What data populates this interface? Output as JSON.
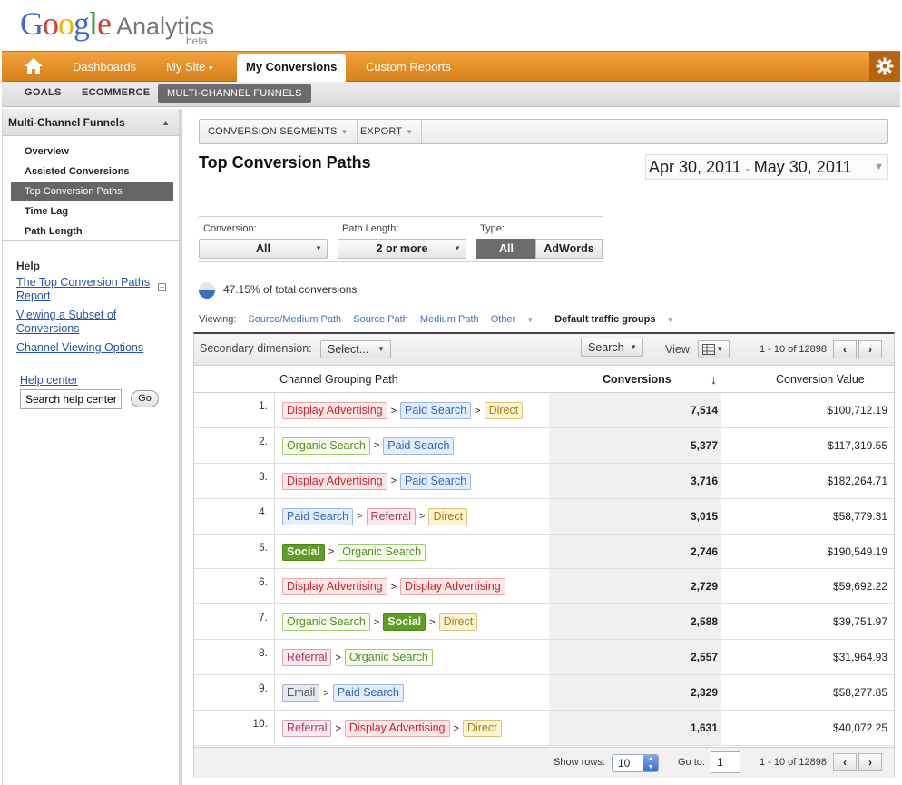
{
  "brand": {
    "google": [
      "G",
      "o",
      "o",
      "g",
      "l",
      "e"
    ],
    "product": "Analytics",
    "beta": "beta"
  },
  "topnav": {
    "items": [
      "Dashboards",
      "My Site",
      "My Conversions",
      "Custom Reports"
    ],
    "my_site_arrow": "▾",
    "active": "My Conversions",
    "accent": "#e48f25"
  },
  "subnav": {
    "items": [
      "GOALS",
      "ECOMMERCE",
      "MULTI-CHANNEL FUNNELS"
    ],
    "active": "MULTI-CHANNEL FUNNELS"
  },
  "sidebar": {
    "title": "Multi-Channel Funnels",
    "items": [
      "Overview",
      "Assisted Conversions",
      "Top Conversion Paths",
      "Time Lag",
      "Path Length"
    ],
    "active": "Top Conversion Paths",
    "help": {
      "title": "Help",
      "links": [
        "The Top Conversion Paths Report",
        "Viewing a Subset of Conversions",
        "Channel Viewing Options"
      ],
      "help_center": "Help center",
      "search_value": "Search help center",
      "go_label": "Go"
    }
  },
  "toolbar": {
    "segments_label": "CONVERSION SEGMENTS",
    "export_label": "EXPORT"
  },
  "page_title": "Top Conversion Paths",
  "date_range": {
    "start": "Apr 30, 2011",
    "dash": "-",
    "end": "May 30, 2011"
  },
  "filters": {
    "conversion_label": "Conversion:",
    "conversion_value": "All",
    "path_length_label": "Path Length:",
    "path_length_value": "2 or more",
    "type_label": "Type:",
    "type_options": [
      "All",
      "AdWords"
    ],
    "type_selected": "All"
  },
  "summary": {
    "percent_text": "47.15% of total conversions",
    "percent": 47.15
  },
  "viewing": {
    "label": "Viewing:",
    "options": [
      "Source/Medium Path",
      "Source Path",
      "Medium Path",
      "Other"
    ],
    "current": "Default traffic groups"
  },
  "secondary": {
    "label": "Secondary dimension:",
    "select_value": "Select...",
    "search_label": "Search",
    "view_label": "View:",
    "pagination_text": "1 - 10 of 12898"
  },
  "table": {
    "columns": [
      "Channel Grouping Path",
      "Conversions",
      "Conversion Value"
    ],
    "sort_icon": "↓",
    "rows": [
      {
        "n": "1.",
        "path": [
          [
            "Display Advertising",
            "display"
          ],
          [
            "Paid Search",
            "paid"
          ],
          [
            "Direct",
            "direct"
          ]
        ],
        "conversions": "7,514",
        "value": "$100,712.19"
      },
      {
        "n": "2.",
        "path": [
          [
            "Organic Search",
            "organic"
          ],
          [
            "Paid Search",
            "paid"
          ]
        ],
        "conversions": "5,377",
        "value": "$117,319.55"
      },
      {
        "n": "3.",
        "path": [
          [
            "Display Advertising",
            "display"
          ],
          [
            "Paid Search",
            "paid"
          ]
        ],
        "conversions": "3,716",
        "value": "$182,264.71"
      },
      {
        "n": "4.",
        "path": [
          [
            "Paid Search",
            "paid"
          ],
          [
            "Referral",
            "referral"
          ],
          [
            "Direct",
            "direct"
          ]
        ],
        "conversions": "3,015",
        "value": "$58,779.31"
      },
      {
        "n": "5.",
        "path": [
          [
            "Social",
            "social"
          ],
          [
            "Organic Search",
            "organic"
          ]
        ],
        "conversions": "2,746",
        "value": "$190,549.19"
      },
      {
        "n": "6.",
        "path": [
          [
            "Display Advertising",
            "display"
          ],
          [
            "Display Advertising",
            "display"
          ]
        ],
        "conversions": "2,729",
        "value": "$59,692.22"
      },
      {
        "n": "7.",
        "path": [
          [
            "Organic Search",
            "organic"
          ],
          [
            "Social",
            "social"
          ],
          [
            "Direct",
            "direct"
          ]
        ],
        "conversions": "2,588",
        "value": "$39,751.97"
      },
      {
        "n": "8.",
        "path": [
          [
            "Referral",
            "referral"
          ],
          [
            "Organic Search",
            "organic"
          ]
        ],
        "conversions": "2,557",
        "value": "$31,964.93"
      },
      {
        "n": "9.",
        "path": [
          [
            "Email",
            "email"
          ],
          [
            "Paid Search",
            "paid"
          ]
        ],
        "conversions": "2,329",
        "value": "$58,277.85"
      },
      {
        "n": "10.",
        "path": [
          [
            "Referral",
            "referral"
          ],
          [
            "Display Advertising",
            "display"
          ],
          [
            "Direct",
            "direct"
          ]
        ],
        "conversions": "1,631",
        "value": "$40,072.25"
      }
    ],
    "path_separator": ">"
  },
  "footer": {
    "show_rows_label": "Show rows:",
    "show_rows_value": "10",
    "goto_label": "Go to:",
    "goto_value": "1",
    "pagination_text": "1 - 10 of 12898"
  },
  "icons": {
    "home": "home-icon",
    "gear": "gear-icon",
    "prev": "‹",
    "next": "›",
    "grid": "grid-view-icon"
  }
}
